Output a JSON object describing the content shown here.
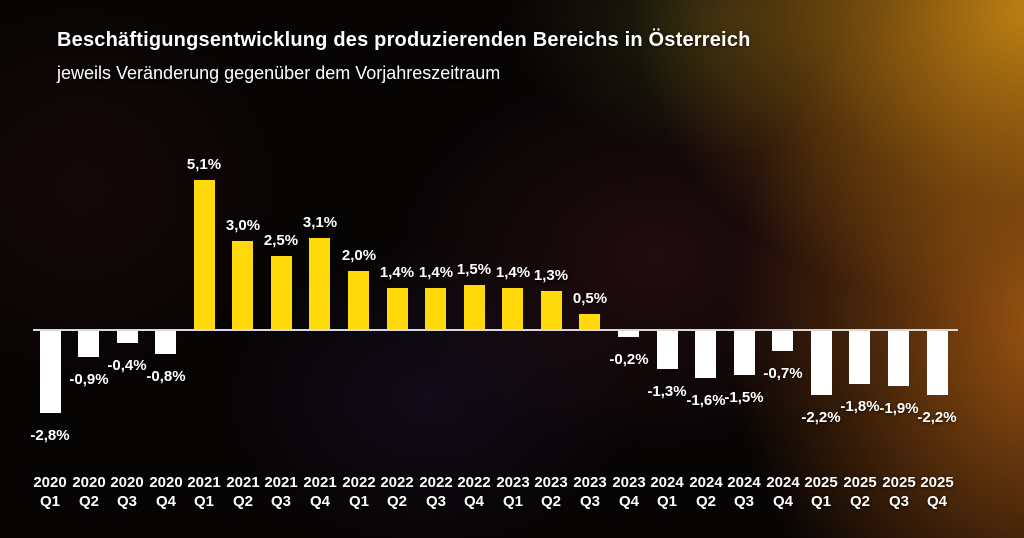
{
  "chart_data": {
    "type": "bar",
    "title": "Beschäftigungsentwicklung des produzierenden Bereichs in Österreich",
    "subtitle": "jeweils Veränderung gegenüber dem Vorjahreszeitraum",
    "categories": [
      "2020 Q1",
      "2020 Q2",
      "2020 Q3",
      "2020 Q4",
      "2021 Q1",
      "2021 Q2",
      "2021 Q3",
      "2021 Q4",
      "2022 Q1",
      "2022 Q2",
      "2022 Q3",
      "2022 Q4",
      "2023 Q1",
      "2023 Q2",
      "2023 Q3",
      "2023 Q4",
      "2024 Q1",
      "2024 Q2",
      "2024 Q3",
      "2024 Q4",
      "2025 Q1",
      "2025 Q2",
      "2025 Q3",
      "2025 Q4"
    ],
    "values": [
      -2.8,
      -0.9,
      -0.4,
      -0.8,
      5.1,
      3.0,
      2.5,
      3.1,
      2.0,
      1.4,
      1.4,
      1.5,
      1.4,
      1.3,
      0.5,
      -0.2,
      -1.3,
      -1.6,
      -1.5,
      -0.7,
      -2.2,
      -1.8,
      -1.9,
      -2.2
    ],
    "value_labels": [
      "-2,8%",
      "-0,9%",
      "-0,4%",
      "-0,8%",
      "5,1%",
      "3,0%",
      "2,5%",
      "3,1%",
      "2,0%",
      "1,4%",
      "1,4%",
      "1,5%",
      "1,4%",
      "1,3%",
      "0,5%",
      "-0,2%",
      "-1,3%",
      "-1,6%",
      "-1,5%",
      "-0,7%",
      "-2,2%",
      "-1,8%",
      "-1,9%",
      "-2,2%"
    ],
    "ylabel": "",
    "xlabel": "",
    "ylim": [
      -3.2,
      5.6
    ],
    "grid": false,
    "legend": null,
    "colors": {
      "positive_bar": "#FFD90A",
      "negative_bar": "#FFFFFF",
      "axis_line": "#D9D9D9",
      "label_text": "#FFFFFF"
    }
  }
}
